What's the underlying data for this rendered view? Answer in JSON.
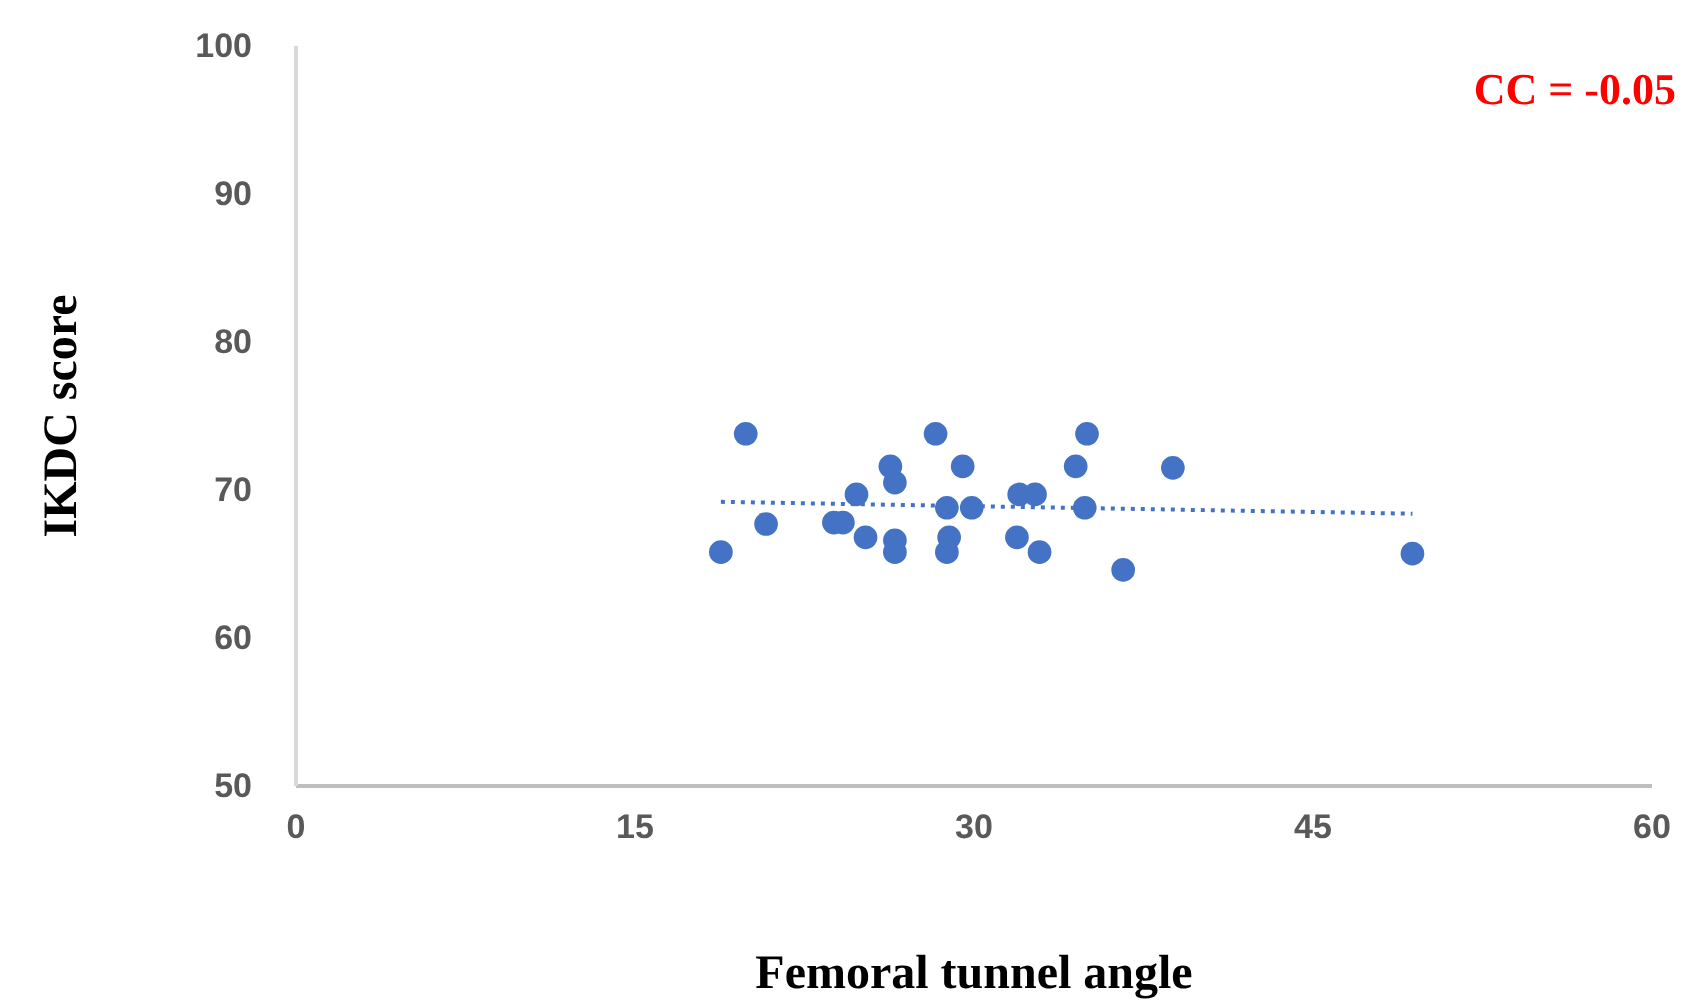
{
  "chart_data": {
    "type": "scatter",
    "xlabel": "Femoral tunnel angle",
    "ylabel": "IKDC score",
    "xlim": [
      0,
      60
    ],
    "xticks": [
      0,
      15,
      30,
      45,
      60
    ],
    "ylim": [
      50,
      100
    ],
    "yticks": [
      50,
      60,
      70,
      80,
      90,
      100
    ],
    "grid": false,
    "marker": "circle",
    "annotations": [
      "CC = -0.05"
    ],
    "series": [
      {
        "color": "#4472c4",
        "x": [
          18.8,
          19.9,
          20.8,
          23.8,
          24.2,
          24.8,
          25.2,
          26.3,
          26.5,
          26.5,
          26.5,
          28.3,
          28.8,
          28.9,
          28.8,
          29.5,
          29.9,
          32.0,
          32.7,
          31.9,
          32.9,
          35.0,
          34.5,
          34.9,
          36.6,
          38.8,
          49.4
        ],
        "values": [
          65.8,
          73.8,
          67.7,
          67.8,
          67.8,
          69.7,
          66.8,
          71.6,
          70.5,
          66.6,
          65.8,
          73.8,
          68.8,
          66.8,
          65.8,
          71.6,
          68.8,
          69.7,
          69.7,
          66.8,
          65.8,
          73.8,
          71.6,
          68.8,
          64.6,
          71.5,
          65.7
        ]
      },
      {
        "type": "line",
        "color": "#4472c4",
        "line_style": "dotted",
        "marker": "none",
        "x": [
          18.8,
          49.4
        ],
        "values": [
          69.2,
          68.4
        ]
      }
    ]
  }
}
